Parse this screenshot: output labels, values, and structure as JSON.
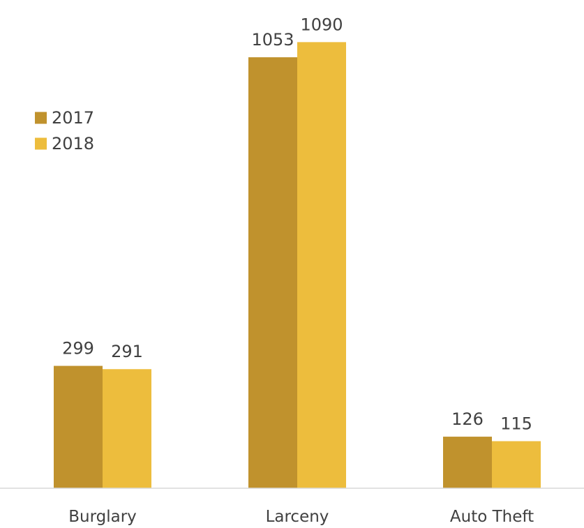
{
  "chart_data": {
    "type": "bar",
    "title": "",
    "xlabel": "",
    "ylabel": "",
    "categories": [
      "Burglary",
      "Larceny",
      "Auto Theft"
    ],
    "series": [
      {
        "name": "2017",
        "color": "#C0922D",
        "values": [
          299,
          1053,
          126
        ]
      },
      {
        "name": "2018",
        "color": "#EDBD3D",
        "values": [
          291,
          1090,
          115
        ]
      }
    ],
    "ylim": [
      0,
      1150
    ],
    "grid": false,
    "legend_position": "upper-left",
    "axis_color": "#d9d9d9"
  }
}
